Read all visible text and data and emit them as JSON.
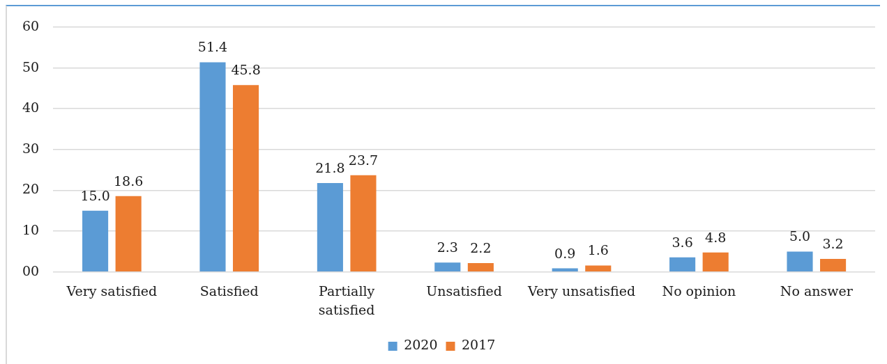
{
  "chart_data": {
    "type": "bar",
    "categories": [
      "Very satisfied",
      "Satisfied",
      "Partially satisfied",
      "Unsatisfied",
      "Very unsatisfied",
      "No opinion",
      "No answer"
    ],
    "series": [
      {
        "name": "2020",
        "color": "#5b9bd5",
        "values": [
          15.0,
          51.4,
          21.8,
          2.3,
          0.9,
          3.6,
          5.0
        ],
        "value_labels": [
          "15.0",
          "51.4",
          "21.8",
          "2.3",
          "0.9",
          "3.6",
          "5.0"
        ]
      },
      {
        "name": "2017",
        "color": "#ed7d31",
        "values": [
          18.6,
          45.8,
          23.7,
          2.2,
          1.6,
          4.8,
          3.2
        ],
        "value_labels": [
          "18.6",
          "45.8",
          "23.7",
          "2.2",
          "1.6",
          "4.8",
          "3.2"
        ]
      }
    ],
    "ylim": [
      0,
      60
    ],
    "yticks": [
      {
        "value": 0,
        "label": "00"
      },
      10,
      20,
      30,
      40,
      50,
      60
    ],
    "grid": "y",
    "legend": "bottom"
  }
}
